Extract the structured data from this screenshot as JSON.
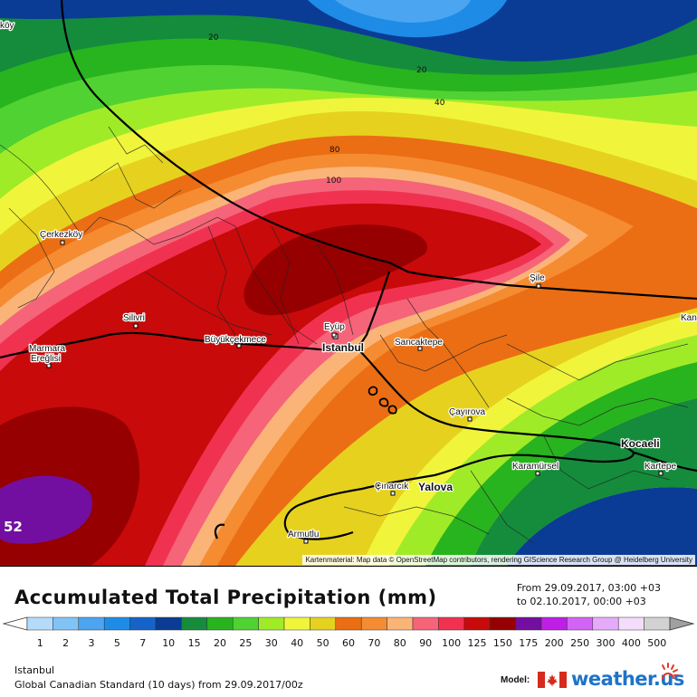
{
  "map": {
    "cities": [
      {
        "name": "Istanbul",
        "big": true
      },
      {
        "name": "Eyüp"
      },
      {
        "name": "Büyükçekmece"
      },
      {
        "name": "Silivri"
      },
      {
        "name": "Marmara"
      },
      {
        "name": "Ereğlisi"
      },
      {
        "name": "Çerkezköy"
      },
      {
        "name": "Şile"
      },
      {
        "name": "Sancaktepe"
      },
      {
        "name": "Çayırova"
      },
      {
        "name": "Kocaeli",
        "big": true
      },
      {
        "name": "Karamürsel"
      },
      {
        "name": "Kartepe"
      },
      {
        "name": "Çınarcık"
      },
      {
        "name": "Yalova",
        "big": true
      },
      {
        "name": "Armutlu"
      },
      {
        "name": "köy"
      },
      {
        "name": "Kan"
      }
    ],
    "contour_labels": [
      "20",
      "20",
      "40",
      "80",
      "100"
    ],
    "max_value_label": "52",
    "attribution": "Kartenmaterial: Map data © OpenStreetMap contributors, rendering GIScience Research Group @ Heidelberg University"
  },
  "footer": {
    "title": "Accumulated Total Precipitation (mm)",
    "period_from": "From 29.09.2017, 03:00 +03",
    "period_to": "to 02.10.2017, 00:00 +03",
    "location": "Istanbul",
    "model_run": "Global Canadian Standard (10 days) from 29.09.2017/00z",
    "model_label": "Model:",
    "brand": "weather.us"
  },
  "legend": {
    "values": [
      "1",
      "2",
      "3",
      "5",
      "7",
      "10",
      "15",
      "20",
      "25",
      "30",
      "40",
      "50",
      "60",
      "70",
      "80",
      "90",
      "100",
      "125",
      "150",
      "175",
      "200",
      "250",
      "300",
      "400",
      "500"
    ],
    "colors": [
      "#b4dcfa",
      "#82c3f5",
      "#4ba5f0",
      "#1e8ce6",
      "#1464c8",
      "#0a3c96",
      "#148c3c",
      "#28b41e",
      "#50d232",
      "#a0eb28",
      "#f0f53c",
      "#e6d21e",
      "#eb6e14",
      "#f58c32",
      "#fab478",
      "#f56478",
      "#f03250",
      "#c80a0a",
      "#960000",
      "#730fa0",
      "#be1ee6",
      "#d264f5",
      "#e6aafa",
      "#f5dcfa",
      "#d2d2d2"
    ],
    "left_arrow_color": "#ffffff",
    "right_arrow_color": "#a0a0a0"
  }
}
